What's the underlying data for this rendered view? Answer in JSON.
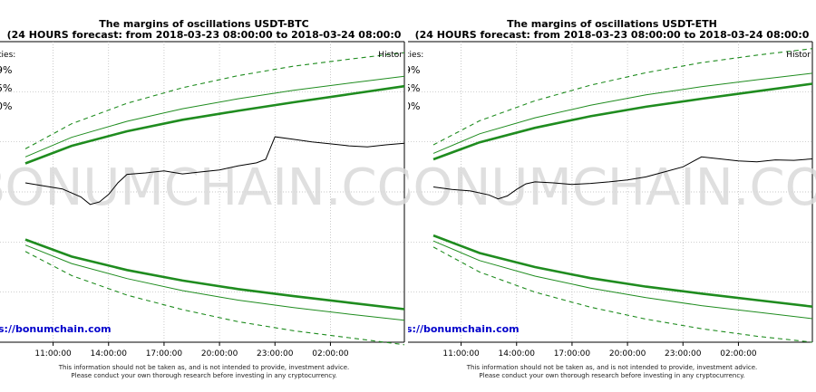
{
  "chart_data": [
    {
      "type": "line",
      "title": "The margins of oscillations USDT-BTC",
      "subtitle": "(24 HOURS forecast: from 2018-03-23 08:00:00 to 2018-03-24 08:00:0",
      "legend_title": "ties:",
      "legend_title_right": "Histor",
      "legend_entries": [
        "9%",
        "5%",
        "0%"
      ],
      "watermark": "BONUMCHAIN.COM",
      "site_label": "s://bonumchain.com",
      "x_ticks": [
        "11:00:00",
        "14:00:00",
        "17:00:00",
        "20:00:00",
        "23:00:00",
        "02:00:00"
      ],
      "xlim": [
        "09:30",
        "06:00"
      ],
      "ylim": [
        -3.0,
        3.0
      ],
      "grid": true,
      "colors": {
        "bands": "#1f8c1f",
        "price": "#000000",
        "site": "#0000cc",
        "watermark": "#d9d9d9"
      },
      "series": [
        {
          "x": [
            "09:30",
            "12:00",
            "15:00",
            "18:00",
            "21:00",
            "00:00",
            "03:00",
            "06:00"
          ],
          "upper_outer": [
            0.86,
            1.36,
            1.77,
            2.08,
            2.32,
            2.51,
            2.65,
            2.78
          ]
        },
        {
          "x": [
            "09:30",
            "12:00",
            "15:00",
            "18:00",
            "21:00",
            "00:00",
            "03:00",
            "06:00"
          ],
          "upper_mid": [
            0.7,
            1.09,
            1.41,
            1.66,
            1.86,
            2.03,
            2.17,
            2.31
          ]
        },
        {
          "x": [
            "09:30",
            "12:00",
            "15:00",
            "18:00",
            "21:00",
            "00:00",
            "03:00",
            "06:00"
          ],
          "upper_inner": [
            0.57,
            0.92,
            1.21,
            1.44,
            1.62,
            1.79,
            1.95,
            2.11
          ]
        },
        {
          "x": [
            "09:30",
            "12:00",
            "15:00",
            "18:00",
            "21:00",
            "00:00",
            "03:00",
            "06:00"
          ],
          "lower_inner": [
            -0.95,
            -1.29,
            -1.56,
            -1.77,
            -1.94,
            -2.08,
            -2.21,
            -2.34
          ]
        },
        {
          "x": [
            "09:30",
            "12:00",
            "15:00",
            "18:00",
            "21:00",
            "00:00",
            "03:00",
            "06:00"
          ],
          "lower_mid": [
            -1.06,
            -1.43,
            -1.73,
            -1.97,
            -2.16,
            -2.31,
            -2.44,
            -2.56
          ]
        },
        {
          "x": [
            "09:30",
            "12:00",
            "15:00",
            "18:00",
            "21:00",
            "00:00",
            "03:00",
            "06:00"
          ],
          "lower_outer": [
            -1.19,
            -1.67,
            -2.06,
            -2.35,
            -2.59,
            -2.77,
            -2.91,
            -3.05
          ]
        },
        {
          "x": [
            "09:30",
            "10:30",
            "11:30",
            "12:30",
            "13:00",
            "13:30",
            "14:00",
            "14:30",
            "15:00",
            "16:00",
            "17:00",
            "18:00",
            "19:00",
            "20:00",
            "21:00",
            "22:00",
            "22:30",
            "23:00",
            "00:00",
            "01:00",
            "02:00",
            "03:00",
            "04:00",
            "05:00",
            "06:00"
          ],
          "price": [
            0.18,
            0.12,
            0.06,
            -0.1,
            -0.25,
            -0.2,
            -0.05,
            0.18,
            0.35,
            0.38,
            0.42,
            0.36,
            0.4,
            0.44,
            0.52,
            0.58,
            0.65,
            1.1,
            1.05,
            1.0,
            0.96,
            0.92,
            0.9,
            0.94,
            0.97
          ]
        }
      ]
    },
    {
      "type": "line",
      "title": "The margins of oscillations USDT-ETH",
      "subtitle": "(24 HOURS forecast: from 2018-03-23 08:00:00 to 2018-03-24 08:00:0",
      "legend_title": "ties:",
      "legend_title_right": "Histor",
      "legend_entries": [
        "9%",
        "5%",
        "0%"
      ],
      "watermark": "BONUMCHAIN.COM",
      "site_label": "s://bonumchain.com",
      "x_ticks": [
        "11:00:00",
        "14:00:00",
        "17:00:00",
        "20:00:00",
        "23:00:00",
        "02:00:00"
      ],
      "xlim": [
        "09:30",
        "06:00"
      ],
      "ylim": [
        -3.0,
        3.0
      ],
      "grid": true,
      "colors": {
        "bands": "#1f8c1f",
        "price": "#000000",
        "site": "#0000cc",
        "watermark": "#d9d9d9"
      },
      "series": [
        {
          "x": [
            "09:30",
            "12:00",
            "15:00",
            "18:00",
            "21:00",
            "00:00",
            "03:00",
            "06:00"
          ],
          "upper_outer": [
            0.94,
            1.42,
            1.82,
            2.13,
            2.38,
            2.58,
            2.73,
            2.86
          ]
        },
        {
          "x": [
            "09:30",
            "12:00",
            "15:00",
            "18:00",
            "21:00",
            "00:00",
            "03:00",
            "06:00"
          ],
          "upper_mid": [
            0.77,
            1.16,
            1.48,
            1.73,
            1.94,
            2.1,
            2.24,
            2.37
          ]
        },
        {
          "x": [
            "09:30",
            "12:00",
            "15:00",
            "18:00",
            "21:00",
            "00:00",
            "03:00",
            "06:00"
          ],
          "upper_inner": [
            0.65,
            0.99,
            1.28,
            1.51,
            1.7,
            1.86,
            2.01,
            2.16
          ]
        },
        {
          "x": [
            "09:30",
            "12:00",
            "15:00",
            "18:00",
            "21:00",
            "00:00",
            "03:00",
            "06:00"
          ],
          "lower_inner": [
            -0.87,
            -1.22,
            -1.5,
            -1.72,
            -1.89,
            -2.03,
            -2.16,
            -2.29
          ]
        },
        {
          "x": [
            "09:30",
            "12:00",
            "15:00",
            "18:00",
            "21:00",
            "00:00",
            "03:00",
            "06:00"
          ],
          "lower_mid": [
            -0.98,
            -1.37,
            -1.68,
            -1.92,
            -2.11,
            -2.27,
            -2.4,
            -2.53
          ]
        },
        {
          "x": [
            "09:30",
            "12:00",
            "15:00",
            "18:00",
            "21:00",
            "00:00",
            "03:00",
            "06:00"
          ],
          "lower_outer": [
            -1.1,
            -1.6,
            -2.0,
            -2.3,
            -2.54,
            -2.73,
            -2.88,
            -3.0
          ]
        },
        {
          "x": [
            "09:30",
            "10:30",
            "11:30",
            "12:30",
            "13:00",
            "13:30",
            "14:00",
            "14:30",
            "15:00",
            "16:00",
            "17:00",
            "18:00",
            "19:00",
            "20:00",
            "21:00",
            "22:00",
            "23:00",
            "00:00",
            "01:00",
            "02:00",
            "03:00",
            "04:00",
            "05:00",
            "06:00"
          ],
          "price": [
            0.1,
            0.05,
            0.02,
            -0.06,
            -0.14,
            -0.08,
            0.05,
            0.16,
            0.2,
            0.18,
            0.15,
            0.17,
            0.2,
            0.24,
            0.3,
            0.4,
            0.5,
            0.7,
            0.66,
            0.62,
            0.6,
            0.64,
            0.63,
            0.66
          ]
        }
      ]
    }
  ],
  "footer": {
    "line1": "This information should not be taken as, and is not intended to provide, investment advice.",
    "line2": "Please conduct your own thorough research before investing in any cryptocurrency."
  }
}
